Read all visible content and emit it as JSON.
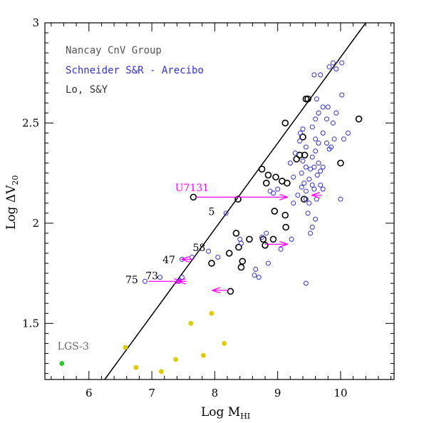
{
  "chart_data": {
    "type": "scatter",
    "title": "",
    "xlabel": "Log M",
    "xlabel_sub": "HI",
    "ylabel": "Log ΔV",
    "ylabel_sub": "20",
    "xlim": [
      5.3,
      10.85
    ],
    "ylim": [
      1.22,
      3.0
    ],
    "xticks": [
      6,
      7,
      8,
      9,
      10
    ],
    "yticks": [
      1.5,
      2,
      2.5,
      3
    ],
    "grid": false,
    "legend_position": "top-left",
    "legend": [
      {
        "label": "Nancay CnV Group",
        "color": "#555555"
      },
      {
        "label": "Schneider S&R - Arecibo",
        "color": "#3333cc"
      },
      {
        "label": "Lo, S&Y",
        "color": "#333333"
      }
    ],
    "line": {
      "x": [
        6.25,
        10.4
      ],
      "y": [
        1.22,
        3.0
      ],
      "color": "#000000"
    },
    "series": [
      {
        "name": "Nancay CnV Group",
        "color": "#000000",
        "marker": "open-circle-large",
        "points": [
          [
            7.66,
            2.13
          ],
          [
            8.37,
            2.12
          ],
          [
            8.75,
            2.27
          ],
          [
            8.82,
            2.2
          ],
          [
            8.85,
            2.24
          ],
          [
            8.97,
            2.23
          ],
          [
            9.07,
            2.21
          ],
          [
            9.15,
            2.2
          ],
          [
            9.12,
            2.5
          ],
          [
            9.3,
            2.32
          ],
          [
            9.35,
            2.34
          ],
          [
            9.43,
            2.34
          ],
          [
            9.4,
            2.43
          ],
          [
            9.45,
            2.62
          ],
          [
            9.48,
            2.62
          ],
          [
            9.42,
            2.12
          ],
          [
            10.0,
            2.3
          ],
          [
            10.29,
            2.52
          ],
          [
            8.34,
            1.95
          ],
          [
            8.38,
            1.88
          ],
          [
            8.23,
            1.85
          ],
          [
            8.55,
            1.92
          ],
          [
            8.77,
            1.92
          ],
          [
            8.93,
            1.92
          ],
          [
            9.12,
            2.04
          ],
          [
            9.13,
            1.98
          ],
          [
            8.95,
            2.06
          ],
          [
            8.8,
            1.89
          ],
          [
            8.44,
            1.81
          ],
          [
            8.42,
            1.78
          ],
          [
            7.95,
            1.8
          ],
          [
            8.25,
            1.66
          ]
        ]
      },
      {
        "name": "Schneider S&R - Arecibo",
        "color": "#3333cc",
        "marker": "open-circle-small",
        "points": [
          [
            9.28,
            2.35
          ],
          [
            9.35,
            2.41
          ],
          [
            9.36,
            2.45
          ],
          [
            9.4,
            2.47
          ],
          [
            9.45,
            2.38
          ],
          [
            9.55,
            2.48
          ],
          [
            9.6,
            2.52
          ],
          [
            9.62,
            2.62
          ],
          [
            9.58,
            2.74
          ],
          [
            9.68,
            2.74
          ],
          [
            9.82,
            2.78
          ],
          [
            9.88,
            2.8
          ],
          [
            9.93,
            2.77
          ],
          [
            10.02,
            2.8
          ],
          [
            10.02,
            2.64
          ],
          [
            9.72,
            2.58
          ],
          [
            9.8,
            2.58
          ],
          [
            9.65,
            2.55
          ],
          [
            9.78,
            2.52
          ],
          [
            9.88,
            2.5
          ],
          [
            9.93,
            2.55
          ],
          [
            9.72,
            2.45
          ],
          [
            9.6,
            2.42
          ],
          [
            9.65,
            2.4
          ],
          [
            9.6,
            2.36
          ],
          [
            9.55,
            2.33
          ],
          [
            9.65,
            2.3
          ],
          [
            9.72,
            2.28
          ],
          [
            9.68,
            2.26
          ],
          [
            9.63,
            2.24
          ],
          [
            9.58,
            2.28
          ],
          [
            9.52,
            2.27
          ],
          [
            9.5,
            2.22
          ],
          [
            9.45,
            2.28
          ],
          [
            9.4,
            2.31
          ],
          [
            9.38,
            2.25
          ],
          [
            9.42,
            2.2
          ],
          [
            9.45,
            2.16
          ],
          [
            9.38,
            2.18
          ],
          [
            9.32,
            2.14
          ],
          [
            9.45,
            2.12
          ],
          [
            9.5,
            2.1
          ],
          [
            9.58,
            2.17
          ],
          [
            9.62,
            2.12
          ],
          [
            9.55,
            2.19
          ],
          [
            9.25,
            2.23
          ],
          [
            9.2,
            2.3
          ],
          [
            9.48,
            2.05
          ],
          [
            9.55,
            1.98
          ],
          [
            9.6,
            2.02
          ],
          [
            9.52,
            1.95
          ],
          [
            9.85,
            2.38
          ],
          [
            9.9,
            2.42
          ],
          [
            10.05,
            2.42
          ],
          [
            10.12,
            2.45
          ],
          [
            10.0,
            2.12
          ],
          [
            9.72,
            2.17
          ],
          [
            9.68,
            2.19
          ],
          [
            9.82,
            2.37
          ],
          [
            9.78,
            2.4
          ],
          [
            9.45,
            1.7
          ],
          [
            9.22,
            1.92
          ],
          [
            9.25,
            2.1
          ],
          [
            9.0,
            2.17
          ],
          [
            8.93,
            2.15
          ],
          [
            8.88,
            2.16
          ],
          [
            8.82,
            1.95
          ],
          [
            8.75,
            1.93
          ],
          [
            8.85,
            1.8
          ],
          [
            8.65,
            1.77
          ],
          [
            8.7,
            1.73
          ],
          [
            8.63,
            1.74
          ],
          [
            8.4,
            1.92
          ],
          [
            8.42,
            1.9
          ],
          [
            8.18,
            2.05
          ],
          [
            7.9,
            1.86
          ],
          [
            7.64,
            1.83
          ],
          [
            7.48,
            1.82
          ],
          [
            7.48,
            1.73
          ],
          [
            7.43,
            1.71
          ],
          [
            7.13,
            1.73
          ],
          [
            6.89,
            1.71
          ],
          [
            8.05,
            1.83
          ],
          [
            9.05,
            1.87
          ]
        ]
      },
      {
        "name": "Lo, S&Y",
        "color": "#ddcc00",
        "marker": "filled-circle",
        "points": [
          [
            6.58,
            1.38
          ],
          [
            6.75,
            1.28
          ],
          [
            7.15,
            1.26
          ],
          [
            7.38,
            1.32
          ],
          [
            7.62,
            1.5
          ],
          [
            7.82,
            1.34
          ],
          [
            7.95,
            1.55
          ],
          [
            8.15,
            1.4
          ]
        ]
      },
      {
        "name": "LGS-3",
        "color": "#22cc22",
        "marker": "filled-circle",
        "points": [
          [
            5.57,
            1.3
          ]
        ]
      }
    ],
    "arrows": [
      {
        "from": [
          7.7,
          2.13
        ],
        "to": [
          9.15,
          2.13
        ],
        "color": "#ff00ff"
      },
      {
        "from": [
          9.7,
          2.14
        ],
        "to": [
          9.55,
          2.14
        ],
        "color": "#ff00ff"
      },
      {
        "from": [
          8.8,
          1.895
        ],
        "to": [
          9.15,
          1.895
        ],
        "color": "#ff00ff"
      },
      {
        "from": [
          8.22,
          1.665
        ],
        "to": [
          7.97,
          1.665
        ],
        "color": "#ff00ff"
      },
      {
        "from": [
          7.65,
          1.82
        ],
        "to": [
          7.48,
          1.82
        ],
        "color": "#ff00ff"
      },
      {
        "from": [
          6.95,
          1.71
        ],
        "to": [
          7.47,
          1.71
        ],
        "color": "#ff00ff"
      },
      {
        "from": [
          7.55,
          1.71
        ],
        "to": [
          7.42,
          1.71
        ],
        "color": "#ff00ff"
      }
    ],
    "annotations": [
      {
        "text": "U7131",
        "x": 7.37,
        "y": 2.16,
        "color": "#ff00ff"
      },
      {
        "text": "5",
        "x": 7.9,
        "y": 2.04,
        "color": "#000000"
      },
      {
        "text": "58",
        "x": 7.65,
        "y": 1.86,
        "color": "#000000"
      },
      {
        "text": "47",
        "x": 7.17,
        "y": 1.8,
        "color": "#000000"
      },
      {
        "text": "73",
        "x": 6.9,
        "y": 1.72,
        "color": "#000000"
      },
      {
        "text": "75",
        "x": 6.58,
        "y": 1.7,
        "color": "#000000"
      },
      {
        "text": "LGS-3",
        "x": 5.5,
        "y": 1.37,
        "color": "#666666"
      }
    ]
  }
}
